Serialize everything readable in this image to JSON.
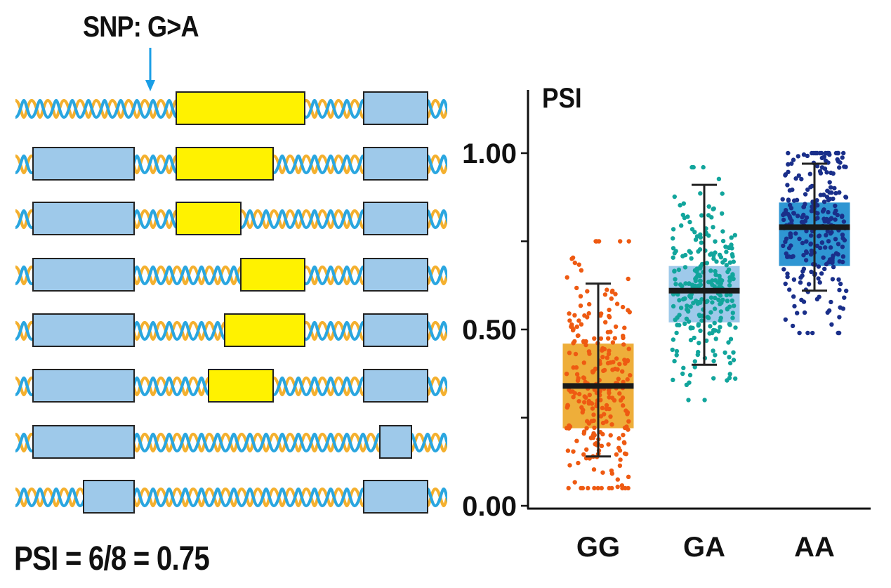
{
  "diagram": {
    "snp_label": "SNP: G>A",
    "psi_formula": "PSI = 6/8 = 0.75",
    "colors": {
      "strand_a": "#f4b02e",
      "strand_b": "#2aa6e0",
      "constitutive_exon": "#9ec9ea",
      "alternative_exon": "#fff200",
      "snp_arrow": "#1a9ee6"
    },
    "isoforms": [
      {
        "alternative_exon_included": true
      },
      {
        "alternative_exon_included": true
      },
      {
        "alternative_exon_included": true
      },
      {
        "alternative_exon_included": true
      },
      {
        "alternative_exon_included": true
      },
      {
        "alternative_exon_included": true
      },
      {
        "alternative_exon_included": false
      },
      {
        "alternative_exon_included": false
      }
    ]
  },
  "chart_data": {
    "type": "box",
    "ylabel": "PSI",
    "xlabel": "",
    "ylim": [
      0.0,
      1.15
    ],
    "yticks": [
      0.0,
      0.25,
      0.5,
      0.75,
      1.0
    ],
    "ytick_labels": [
      "0.00",
      "",
      "0.50",
      "",
      "1.00"
    ],
    "categories": [
      "GG",
      "GA",
      "AA"
    ],
    "series": [
      {
        "name": "GG",
        "box_color": "#eeae3a",
        "point_color": "#ee5a12",
        "whisker_low": 0.14,
        "q1": 0.22,
        "median": 0.34,
        "q3": 0.46,
        "whisker_high": 0.63,
        "point_min": 0.05,
        "point_max": 0.75
      },
      {
        "name": "GA",
        "box_color": "#9ec9ea",
        "point_color": "#12a59c",
        "whisker_low": 0.4,
        "q1": 0.52,
        "median": 0.61,
        "q3": 0.68,
        "whisker_high": 0.91,
        "point_min": 0.3,
        "point_max": 0.96
      },
      {
        "name": "AA",
        "box_color": "#2f96d3",
        "point_color": "#1a2f8a",
        "whisker_low": 0.61,
        "q1": 0.68,
        "median": 0.79,
        "q3": 0.86,
        "whisker_high": 0.97,
        "point_min": 0.49,
        "point_max": 1.0
      }
    ]
  }
}
